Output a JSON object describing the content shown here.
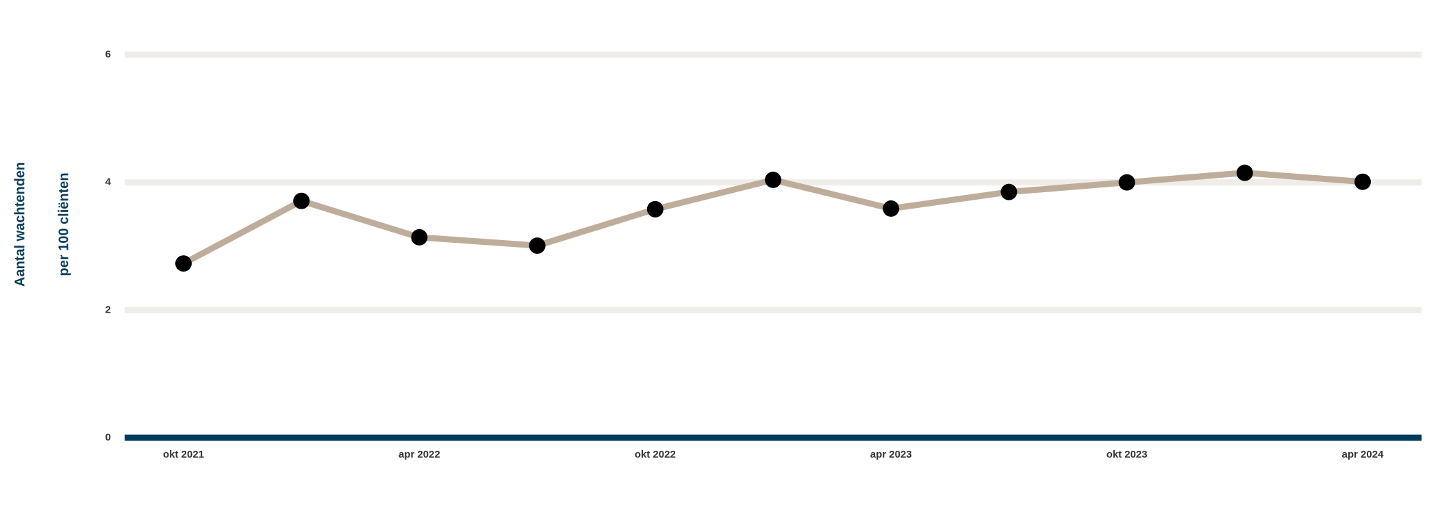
{
  "chart_data": {
    "type": "line",
    "ylabel": [
      "Aantal wachtenden",
      "per 100 cliënten"
    ],
    "categories": [
      "okt 2021",
      null,
      "apr 2022",
      null,
      "okt 2022",
      null,
      "apr 2023",
      null,
      "okt 2023",
      null,
      "apr 2024"
    ],
    "series": [
      {
        "color": "#bfad9b",
        "marker_color": "#000000",
        "values": [
          2.73,
          3.71,
          3.14,
          3.01,
          3.58,
          4.04,
          3.59,
          3.85,
          4.0,
          4.15,
          4.01
        ]
      }
    ],
    "ylim": [
      0,
      6
    ],
    "yticks": [
      0,
      2,
      4,
      6
    ],
    "grid": true,
    "grid_color": "#f0ece8",
    "axis_color": "#003a5c"
  }
}
